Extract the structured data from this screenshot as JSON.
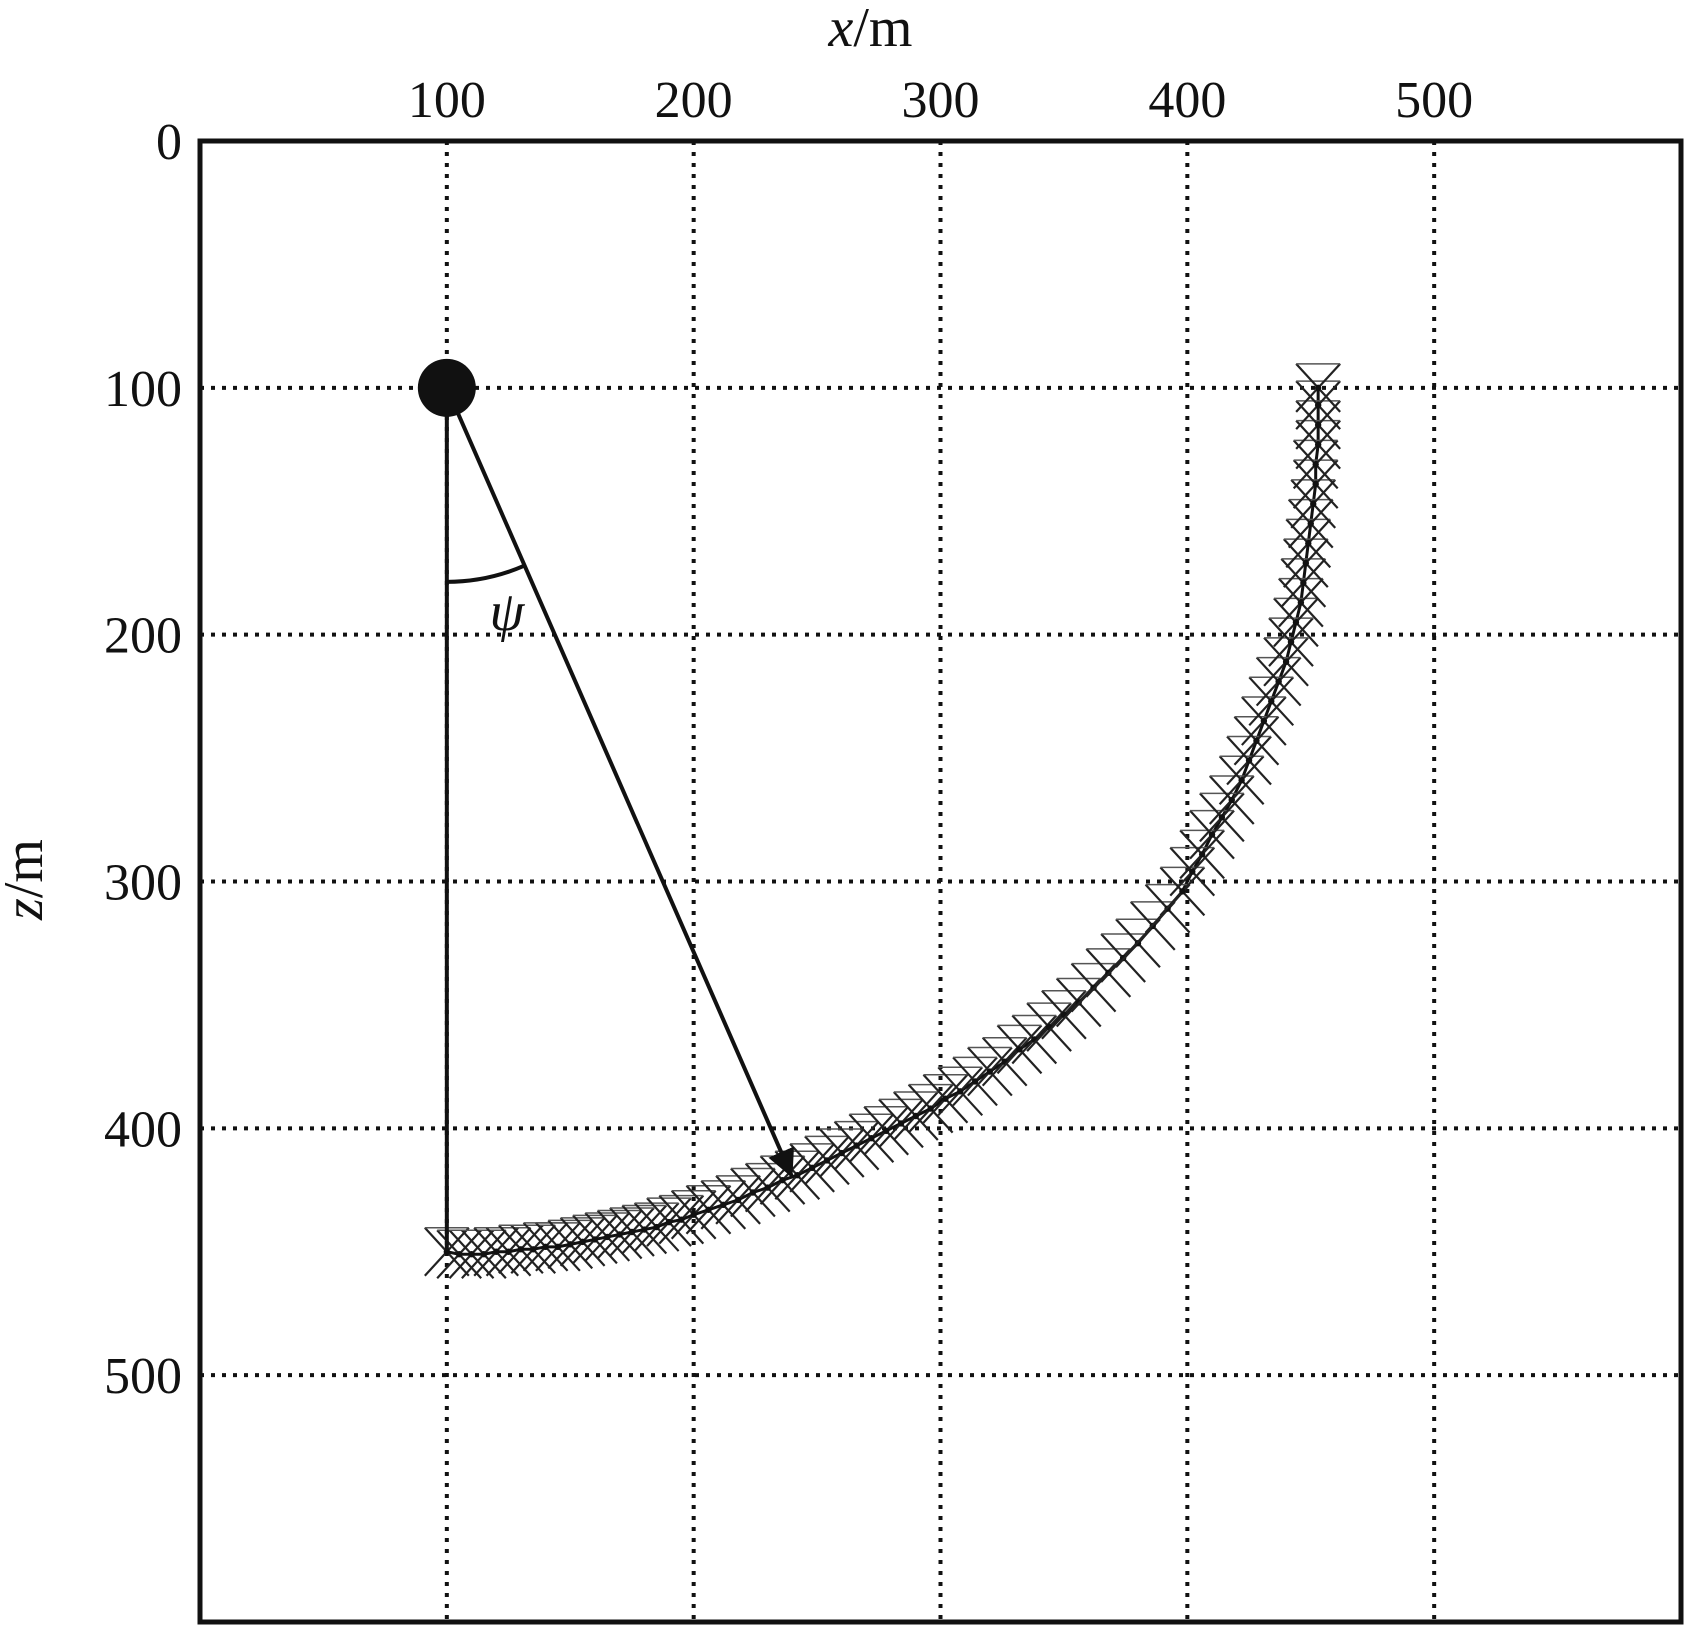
{
  "chart_data": {
    "type": "scatter",
    "title": "",
    "xlabel": {
      "var": "x",
      "unit": "/m"
    },
    "ylabel": {
      "var": "z",
      "unit": "/m"
    },
    "x_ticks": [
      100,
      200,
      300,
      400,
      500
    ],
    "z_ticks": [
      0,
      100,
      200,
      300,
      400,
      500
    ],
    "x_tick_labels": [
      "100",
      "200",
      "300",
      "400",
      "500"
    ],
    "z_tick_labels": [
      "0",
      "100",
      "200",
      "300",
      "400",
      "500"
    ],
    "xlim": [
      0,
      600
    ],
    "zlim": [
      0,
      600
    ],
    "z_axis_inverted": true,
    "x_axis_position": "top",
    "grid": true,
    "grid_style": "dotted",
    "source": {
      "x": 100,
      "z": 100
    },
    "vertical_reference": {
      "from": [
        100,
        100
      ],
      "to": [
        100,
        450
      ]
    },
    "arrow": {
      "from": [
        100,
        100
      ],
      "to": [
        240,
        420
      ]
    },
    "angle_label": "ψ",
    "series": [
      {
        "marker": "x",
        "points": [
          [
            100,
            450
          ],
          [
            105,
            451
          ],
          [
            110,
            451
          ],
          [
            115,
            451
          ],
          [
            120,
            450
          ],
          [
            125,
            450
          ],
          [
            130,
            449
          ],
          [
            135,
            449
          ],
          [
            140,
            448
          ],
          [
            145,
            448
          ],
          [
            150,
            447
          ],
          [
            155,
            446
          ],
          [
            160,
            445
          ],
          [
            165,
            444
          ],
          [
            170,
            443
          ],
          [
            175,
            442
          ],
          [
            180,
            441
          ],
          [
            185,
            440
          ],
          [
            190,
            438
          ],
          [
            195,
            437
          ],
          [
            200,
            435
          ],
          [
            206,
            433
          ],
          [
            212,
            431
          ],
          [
            218,
            429
          ],
          [
            224,
            426
          ],
          [
            230,
            424
          ],
          [
            236,
            421
          ],
          [
            242,
            419
          ],
          [
            248,
            416
          ],
          [
            254,
            413
          ],
          [
            260,
            410
          ],
          [
            266,
            407
          ],
          [
            272,
            404
          ],
          [
            278,
            401
          ],
          [
            284,
            398
          ],
          [
            290,
            395
          ],
          [
            296,
            392
          ],
          [
            302,
            388
          ],
          [
            308,
            385
          ],
          [
            314,
            381
          ],
          [
            320,
            377
          ],
          [
            326,
            373
          ],
          [
            332,
            368
          ],
          [
            338,
            364
          ],
          [
            344,
            359
          ],
          [
            350,
            354
          ],
          [
            356,
            349
          ],
          [
            362,
            343
          ],
          [
            368,
            337
          ],
          [
            374,
            331
          ],
          [
            380,
            325
          ],
          [
            386,
            318
          ],
          [
            392,
            311
          ],
          [
            398,
            304
          ],
          [
            402,
            296
          ],
          [
            406,
            289
          ],
          [
            410,
            281
          ],
          [
            414,
            274
          ],
          [
            418,
            267
          ],
          [
            422,
            259
          ],
          [
            425,
            251
          ],
          [
            428,
            243
          ],
          [
            431,
            235
          ],
          [
            434,
            227
          ],
          [
            437,
            219
          ],
          [
            440,
            211
          ],
          [
            442,
            203
          ],
          [
            444,
            195
          ],
          [
            446,
            187
          ],
          [
            447,
            179
          ],
          [
            448,
            171
          ],
          [
            449,
            163
          ],
          [
            450,
            155
          ],
          [
            451,
            147
          ],
          [
            452,
            139
          ],
          [
            452,
            131
          ],
          [
            453,
            123
          ],
          [
            453,
            115
          ],
          [
            453,
            107
          ],
          [
            453,
            100
          ]
        ]
      }
    ]
  }
}
